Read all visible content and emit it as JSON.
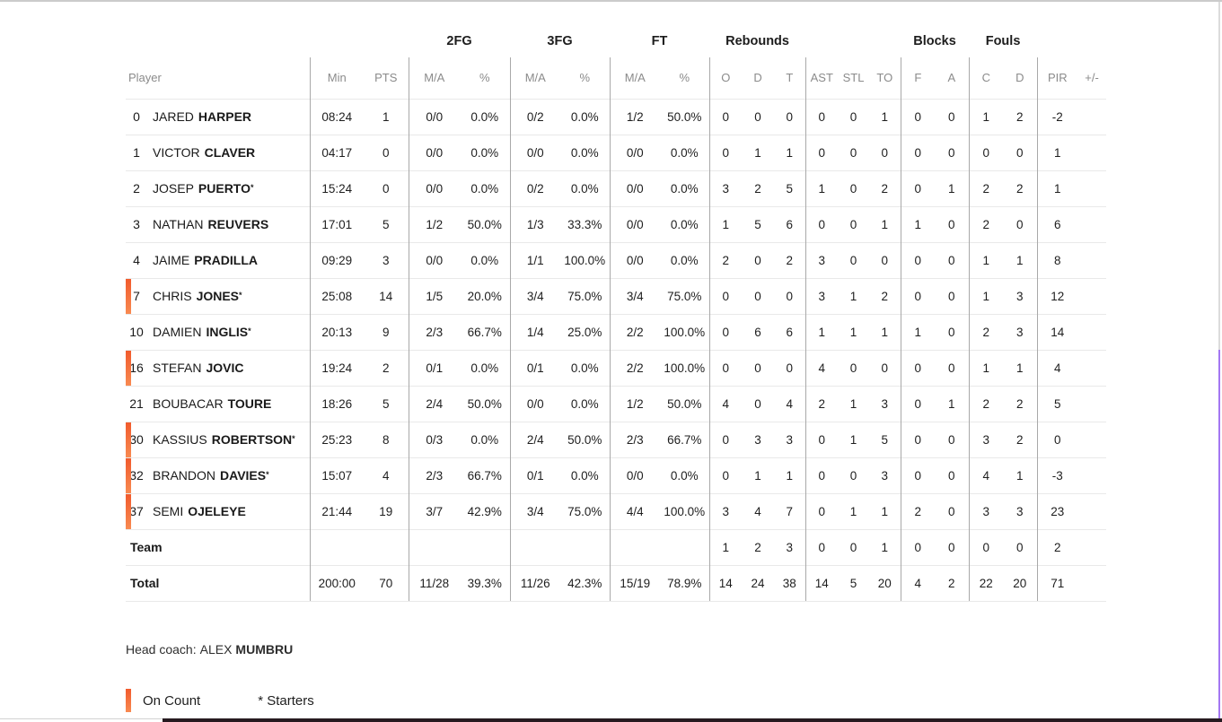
{
  "colors": {
    "accent_orange_top": "#f15b2d",
    "accent_orange_bottom": "#f88a51",
    "scrollbar_purple": "#a478f2",
    "bottom_bar_dark": "#261a20"
  },
  "table": {
    "star_symbol": "*",
    "group_headers": {
      "fg2": "2FG",
      "fg3": "3FG",
      "ft": "FT",
      "rebounds": "Rebounds",
      "blocks": "Blocks",
      "fouls": "Fouls"
    },
    "columns": {
      "player": "Player",
      "min": "Min",
      "pts": "PTS",
      "ma": "M/A",
      "pct": "%",
      "reb_o": "O",
      "reb_d": "D",
      "reb_t": "T",
      "ast": "AST",
      "stl": "STL",
      "to": "TO",
      "blk_f": "F",
      "blk_a": "A",
      "foul_c": "C",
      "foul_d": "D",
      "pir": "PIR",
      "plusminus": "+/-"
    },
    "rows": [
      {
        "type": "player",
        "number": "0",
        "first": "JARED",
        "last": "HARPER",
        "starter": false,
        "on_court": false,
        "min": "08:24",
        "pts": "1",
        "fg2_ma": "0/0",
        "fg2_pct": "0.0%",
        "fg3_ma": "0/2",
        "fg3_pct": "0.0%",
        "ft_ma": "1/2",
        "ft_pct": "50.0%",
        "reb_o": "0",
        "reb_d": "0",
        "reb_t": "0",
        "ast": "0",
        "stl": "0",
        "to": "1",
        "blk_f": "0",
        "blk_a": "0",
        "foul_c": "1",
        "foul_d": "2",
        "pir": "-2",
        "pm": ""
      },
      {
        "type": "player",
        "number": "1",
        "first": "VICTOR",
        "last": "CLAVER",
        "starter": false,
        "on_court": false,
        "min": "04:17",
        "pts": "0",
        "fg2_ma": "0/0",
        "fg2_pct": "0.0%",
        "fg3_ma": "0/0",
        "fg3_pct": "0.0%",
        "ft_ma": "0/0",
        "ft_pct": "0.0%",
        "reb_o": "0",
        "reb_d": "1",
        "reb_t": "1",
        "ast": "0",
        "stl": "0",
        "to": "0",
        "blk_f": "0",
        "blk_a": "0",
        "foul_c": "0",
        "foul_d": "0",
        "pir": "1",
        "pm": ""
      },
      {
        "type": "player",
        "number": "2",
        "first": "JOSEP",
        "last": "PUERTO",
        "starter": true,
        "on_court": false,
        "min": "15:24",
        "pts": "0",
        "fg2_ma": "0/0",
        "fg2_pct": "0.0%",
        "fg3_ma": "0/2",
        "fg3_pct": "0.0%",
        "ft_ma": "0/0",
        "ft_pct": "0.0%",
        "reb_o": "3",
        "reb_d": "2",
        "reb_t": "5",
        "ast": "1",
        "stl": "0",
        "to": "2",
        "blk_f": "0",
        "blk_a": "1",
        "foul_c": "2",
        "foul_d": "2",
        "pir": "1",
        "pm": ""
      },
      {
        "type": "player",
        "number": "3",
        "first": "NATHAN",
        "last": "REUVERS",
        "starter": false,
        "on_court": false,
        "min": "17:01",
        "pts": "5",
        "fg2_ma": "1/2",
        "fg2_pct": "50.0%",
        "fg3_ma": "1/3",
        "fg3_pct": "33.3%",
        "ft_ma": "0/0",
        "ft_pct": "0.0%",
        "reb_o": "1",
        "reb_d": "5",
        "reb_t": "6",
        "ast": "0",
        "stl": "0",
        "to": "1",
        "blk_f": "1",
        "blk_a": "0",
        "foul_c": "2",
        "foul_d": "0",
        "pir": "6",
        "pm": ""
      },
      {
        "type": "player",
        "number": "4",
        "first": "JAIME",
        "last": "PRADILLA",
        "starter": false,
        "on_court": false,
        "min": "09:29",
        "pts": "3",
        "fg2_ma": "0/0",
        "fg2_pct": "0.0%",
        "fg3_ma": "1/1",
        "fg3_pct": "100.0%",
        "ft_ma": "0/0",
        "ft_pct": "0.0%",
        "reb_o": "2",
        "reb_d": "0",
        "reb_t": "2",
        "ast": "3",
        "stl": "0",
        "to": "0",
        "blk_f": "0",
        "blk_a": "0",
        "foul_c": "1",
        "foul_d": "1",
        "pir": "8",
        "pm": ""
      },
      {
        "type": "player",
        "number": "7",
        "first": "CHRIS",
        "last": "JONES",
        "starter": true,
        "on_court": true,
        "min": "25:08",
        "pts": "14",
        "fg2_ma": "1/5",
        "fg2_pct": "20.0%",
        "fg3_ma": "3/4",
        "fg3_pct": "75.0%",
        "ft_ma": "3/4",
        "ft_pct": "75.0%",
        "reb_o": "0",
        "reb_d": "0",
        "reb_t": "0",
        "ast": "3",
        "stl": "1",
        "to": "2",
        "blk_f": "0",
        "blk_a": "0",
        "foul_c": "1",
        "foul_d": "3",
        "pir": "12",
        "pm": ""
      },
      {
        "type": "player",
        "number": "10",
        "first": "DAMIEN",
        "last": "INGLIS",
        "starter": true,
        "on_court": false,
        "min": "20:13",
        "pts": "9",
        "fg2_ma": "2/3",
        "fg2_pct": "66.7%",
        "fg3_ma": "1/4",
        "fg3_pct": "25.0%",
        "ft_ma": "2/2",
        "ft_pct": "100.0%",
        "reb_o": "0",
        "reb_d": "6",
        "reb_t": "6",
        "ast": "1",
        "stl": "1",
        "to": "1",
        "blk_f": "1",
        "blk_a": "0",
        "foul_c": "2",
        "foul_d": "3",
        "pir": "14",
        "pm": ""
      },
      {
        "type": "player",
        "number": "16",
        "first": "STEFAN",
        "last": "JOVIC",
        "starter": false,
        "on_court": true,
        "min": "19:24",
        "pts": "2",
        "fg2_ma": "0/1",
        "fg2_pct": "0.0%",
        "fg3_ma": "0/1",
        "fg3_pct": "0.0%",
        "ft_ma": "2/2",
        "ft_pct": "100.0%",
        "reb_o": "0",
        "reb_d": "0",
        "reb_t": "0",
        "ast": "4",
        "stl": "0",
        "to": "0",
        "blk_f": "0",
        "blk_a": "0",
        "foul_c": "1",
        "foul_d": "1",
        "pir": "4",
        "pm": ""
      },
      {
        "type": "player",
        "number": "21",
        "first": "BOUBACAR",
        "last": "TOURE",
        "starter": false,
        "on_court": false,
        "min": "18:26",
        "pts": "5",
        "fg2_ma": "2/4",
        "fg2_pct": "50.0%",
        "fg3_ma": "0/0",
        "fg3_pct": "0.0%",
        "ft_ma": "1/2",
        "ft_pct": "50.0%",
        "reb_o": "4",
        "reb_d": "0",
        "reb_t": "4",
        "ast": "2",
        "stl": "1",
        "to": "3",
        "blk_f": "0",
        "blk_a": "1",
        "foul_c": "2",
        "foul_d": "2",
        "pir": "5",
        "pm": ""
      },
      {
        "type": "player",
        "number": "30",
        "first": "KASSIUS",
        "last": "ROBERTSON",
        "starter": true,
        "on_court": true,
        "min": "25:23",
        "pts": "8",
        "fg2_ma": "0/3",
        "fg2_pct": "0.0%",
        "fg3_ma": "2/4",
        "fg3_pct": "50.0%",
        "ft_ma": "2/3",
        "ft_pct": "66.7%",
        "reb_o": "0",
        "reb_d": "3",
        "reb_t": "3",
        "ast": "0",
        "stl": "1",
        "to": "5",
        "blk_f": "0",
        "blk_a": "0",
        "foul_c": "3",
        "foul_d": "2",
        "pir": "0",
        "pm": ""
      },
      {
        "type": "player",
        "number": "32",
        "first": "BRANDON",
        "last": "DAVIES",
        "starter": true,
        "on_court": true,
        "min": "15:07",
        "pts": "4",
        "fg2_ma": "2/3",
        "fg2_pct": "66.7%",
        "fg3_ma": "0/1",
        "fg3_pct": "0.0%",
        "ft_ma": "0/0",
        "ft_pct": "0.0%",
        "reb_o": "0",
        "reb_d": "1",
        "reb_t": "1",
        "ast": "0",
        "stl": "0",
        "to": "3",
        "blk_f": "0",
        "blk_a": "0",
        "foul_c": "4",
        "foul_d": "1",
        "pir": "-3",
        "pm": ""
      },
      {
        "type": "player",
        "number": "37",
        "first": "SEMI",
        "last": "OJELEYE",
        "starter": false,
        "on_court": true,
        "min": "21:44",
        "pts": "19",
        "fg2_ma": "3/7",
        "fg2_pct": "42.9%",
        "fg3_ma": "3/4",
        "fg3_pct": "75.0%",
        "ft_ma": "4/4",
        "ft_pct": "100.0%",
        "reb_o": "3",
        "reb_d": "4",
        "reb_t": "7",
        "ast": "0",
        "stl": "1",
        "to": "1",
        "blk_f": "2",
        "blk_a": "0",
        "foul_c": "3",
        "foul_d": "3",
        "pir": "23",
        "pm": ""
      },
      {
        "type": "team",
        "label": "Team",
        "min": "",
        "pts": "",
        "fg2_ma": "",
        "fg2_pct": "",
        "fg3_ma": "",
        "fg3_pct": "",
        "ft_ma": "",
        "ft_pct": "",
        "reb_o": "1",
        "reb_d": "2",
        "reb_t": "3",
        "ast": "0",
        "stl": "0",
        "to": "1",
        "blk_f": "0",
        "blk_a": "0",
        "foul_c": "0",
        "foul_d": "0",
        "pir": "2",
        "pm": ""
      },
      {
        "type": "total",
        "label": "Total",
        "min": "200:00",
        "pts": "70",
        "fg2_ma": "11/28",
        "fg2_pct": "39.3%",
        "fg3_ma": "11/26",
        "fg3_pct": "42.3%",
        "ft_ma": "15/19",
        "ft_pct": "78.9%",
        "reb_o": "14",
        "reb_d": "24",
        "reb_t": "38",
        "ast": "14",
        "stl": "5",
        "to": "20",
        "blk_f": "4",
        "blk_a": "2",
        "foul_c": "22",
        "foul_d": "20",
        "pir": "71",
        "pm": ""
      }
    ]
  },
  "footer": {
    "head_coach_label": "Head coach:",
    "coach_first": "ALEX",
    "coach_last": "MUMBRU",
    "legend_on_court": "On Count",
    "legend_starters": "* Starters"
  }
}
